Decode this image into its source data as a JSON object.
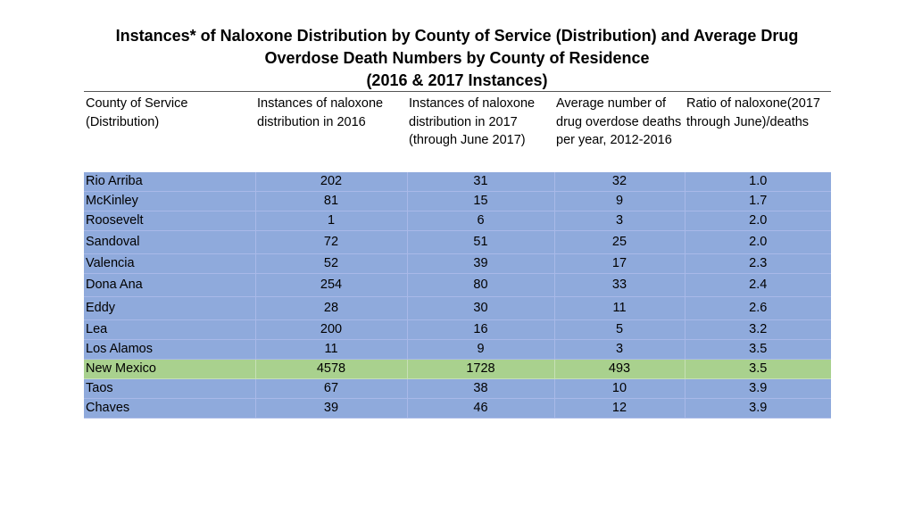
{
  "title": {
    "line1": "Instances* of Naloxone Distribution by County of Service (Distribution) and Average Drug",
    "line2": "Overdose Death Numbers by County of Residence",
    "line3": "(2016 & 2017 Instances)"
  },
  "table": {
    "headers": [
      "County of Service (Distribution)",
      "Instances of naloxone distribution in 2016",
      "Instances of naloxone distribution in 2017 (through June 2017)",
      "Average number of drug overdose deaths per year, 2012-2016",
      "Ratio of naloxone(2017 through June)/deaths"
    ],
    "rows": [
      [
        "Rio Arriba",
        "202",
        "31",
        "32",
        "1.0"
      ],
      [
        "McKinley",
        "81",
        "15",
        "9",
        "1.7"
      ],
      [
        "Roosevelt",
        "1",
        "6",
        "3",
        "2.0"
      ],
      [
        "Sandoval",
        "72",
        "51",
        "25",
        "2.0"
      ],
      [
        "Valencia",
        "52",
        "39",
        "17",
        "2.3"
      ],
      [
        "Dona Ana",
        "254",
        "80",
        "33",
        "2.4"
      ],
      [
        "Eddy",
        "28",
        "30",
        "11",
        "2.6"
      ],
      [
        "Lea",
        "200",
        "16",
        "5",
        "3.2"
      ],
      [
        "Los Alamos",
        "11",
        "9",
        "3",
        "3.5"
      ],
      [
        "New Mexico",
        "4578",
        "1728",
        "493",
        "3.5"
      ],
      [
        "Taos",
        "67",
        "38",
        "10",
        "3.9"
      ],
      [
        "Chaves",
        "39",
        "46",
        "12",
        "3.9"
      ]
    ],
    "highlight_row": "New Mexico",
    "row_color": "#8faadc",
    "highlight_color": "#a9d18e"
  }
}
